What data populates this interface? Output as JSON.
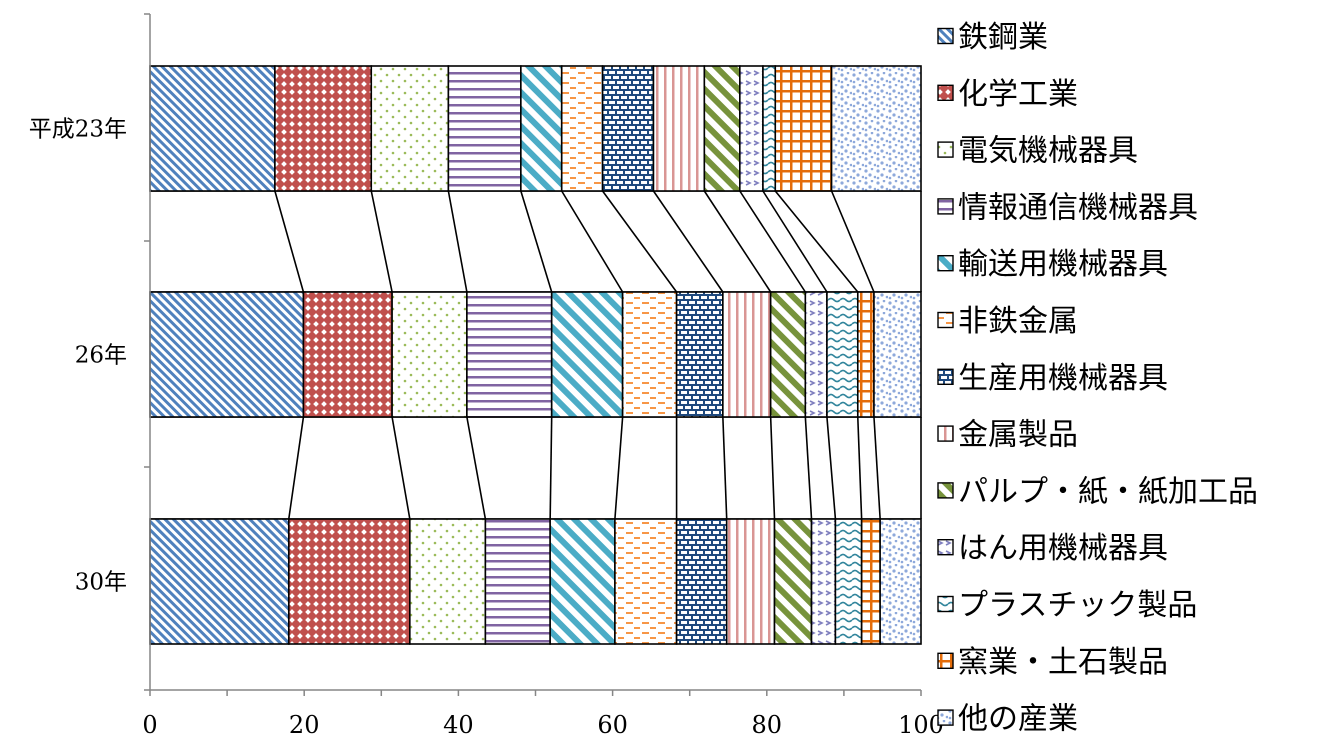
{
  "chart_data": {
    "type": "bar",
    "orientation": "horizontal",
    "stacked": "percent",
    "categories": [
      "平成23年",
      "26年",
      "30年"
    ],
    "xlim": [
      0,
      100
    ],
    "x_ticks": [
      "0",
      "20",
      "40",
      "60",
      "80",
      "100"
    ],
    "grid": false,
    "legend_position": "right",
    "series": [
      {
        "name": "鉄鋼業",
        "values": [
          16.2,
          19.9,
          18.0
        ],
        "color": "#4f81bd",
        "pattern": "diag-fine"
      },
      {
        "name": "化学工業",
        "values": [
          12.5,
          11.5,
          15.7
        ],
        "color": "#c0504d",
        "pattern": "diamond"
      },
      {
        "name": "電気機械器具",
        "values": [
          10.0,
          9.7,
          9.8
        ],
        "color": "#9bbb59",
        "pattern": "dots"
      },
      {
        "name": "情報通信機械器具",
        "values": [
          9.4,
          11.0,
          8.4
        ],
        "color": "#8064a2",
        "pattern": "hlines"
      },
      {
        "name": "輸送用機械器具",
        "values": [
          5.3,
          9.2,
          8.4
        ],
        "color": "#4bacc6",
        "pattern": "diag-wide"
      },
      {
        "name": "非鉄金属",
        "values": [
          5.3,
          7.0,
          8.0
        ],
        "color": "#f79646",
        "pattern": "dashes"
      },
      {
        "name": "生産用機械器具",
        "values": [
          6.6,
          6.0,
          6.5
        ],
        "color": "#1f497d",
        "pattern": "bricks"
      },
      {
        "name": "金属製品",
        "values": [
          6.6,
          6.2,
          6.2
        ],
        "color": "#d99694",
        "pattern": "vlines"
      },
      {
        "name": "パルプ・紙・紙加工品",
        "values": [
          4.6,
          4.5,
          4.8
        ],
        "color": "#77933c",
        "pattern": "diag-wide"
      },
      {
        "name": "はん用機械器具",
        "values": [
          3.0,
          2.8,
          3.1
        ],
        "color": "#7f7fbf",
        "pattern": "zigzag"
      },
      {
        "name": "プラスチック製品",
        "values": [
          1.6,
          4.0,
          3.4
        ],
        "color": "#31859c",
        "pattern": "waves"
      },
      {
        "name": "窯業・土石製品",
        "values": [
          7.3,
          2.1,
          2.4
        ],
        "color": "#e46c0a",
        "pattern": "grid"
      },
      {
        "name": "他の産業",
        "values": [
          11.6,
          6.1,
          5.3
        ],
        "color": "#8ea9db",
        "pattern": "confetti"
      }
    ]
  }
}
